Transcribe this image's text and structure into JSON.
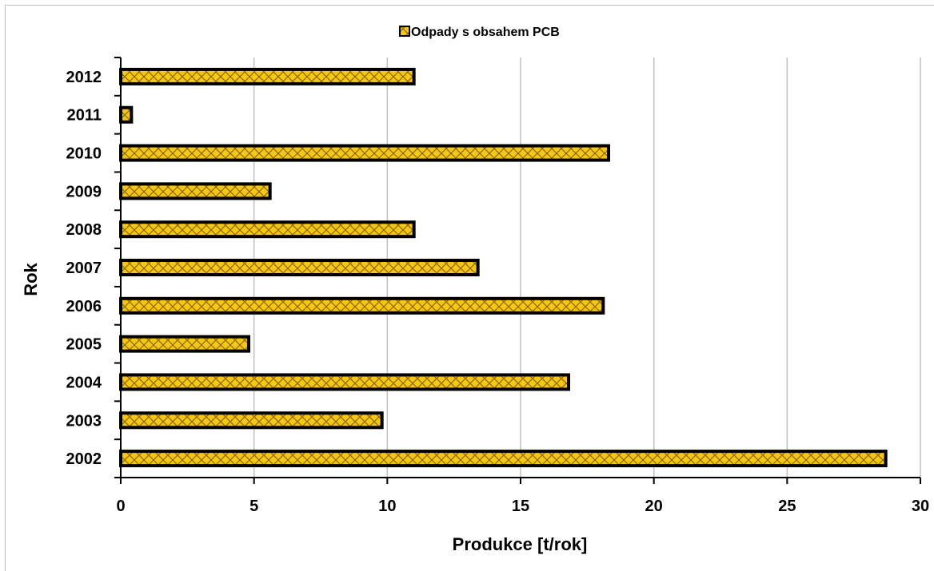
{
  "chart_data": {
    "type": "bar",
    "orientation": "horizontal",
    "categories": [
      "2002",
      "2003",
      "2004",
      "2005",
      "2006",
      "2007",
      "2008",
      "2009",
      "2010",
      "2011",
      "2012"
    ],
    "series": [
      {
        "name": "Odpady s obsahem PCB",
        "values": [
          28.7,
          9.8,
          16.8,
          4.8,
          18.1,
          13.4,
          11.0,
          5.6,
          18.3,
          0.4,
          11.0
        ]
      }
    ],
    "xlabel": "Produkce [t/rok]",
    "ylabel": "Rok",
    "xlim": [
      0,
      30
    ],
    "xticks": [
      "0",
      "5",
      "10",
      "15",
      "20",
      "25",
      "30"
    ],
    "grid": "vertical",
    "legend_position": "top",
    "colors": {
      "bar_fill": "#f5c518",
      "bar_hatch": "#8a6d00",
      "bar_border": "#000000",
      "grid": "#c0c0c0"
    }
  }
}
